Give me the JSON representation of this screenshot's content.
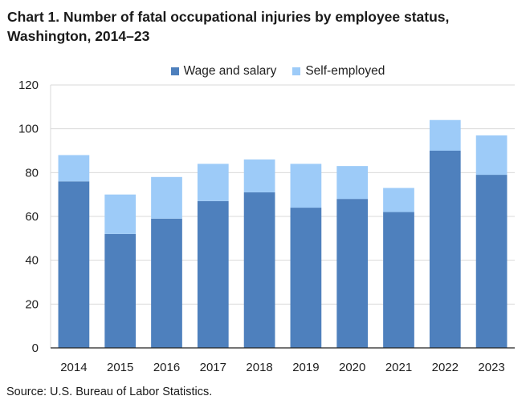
{
  "title_line1": "Chart 1. Number of fatal occupational injuries by employee status,",
  "title_line2": "Washington, 2014–23",
  "source": "Source: U.S. Bureau of Labor Statistics.",
  "colors": {
    "wage": "#4e80bd",
    "self": "#9dcbf8",
    "grid": "#d9d9d9",
    "axis": "#222222"
  },
  "chart_data": {
    "type": "bar",
    "stacked": true,
    "title": "Chart 1. Number of fatal occupational injuries by employee status, Washington, 2014–23",
    "xlabel": "",
    "ylabel": "",
    "ylim": [
      0,
      120
    ],
    "yticks": [
      0,
      20,
      40,
      60,
      80,
      100,
      120
    ],
    "grid": true,
    "legend_position": "top-center",
    "categories": [
      "2014",
      "2015",
      "2016",
      "2017",
      "2018",
      "2019",
      "2020",
      "2021",
      "2022",
      "2023"
    ],
    "series": [
      {
        "name": "Wage and salary",
        "values": [
          76,
          52,
          59,
          67,
          71,
          64,
          68,
          62,
          90,
          79
        ]
      },
      {
        "name": "Self-employed",
        "values": [
          12,
          18,
          19,
          17,
          15,
          20,
          15,
          11,
          14,
          18
        ]
      }
    ]
  }
}
